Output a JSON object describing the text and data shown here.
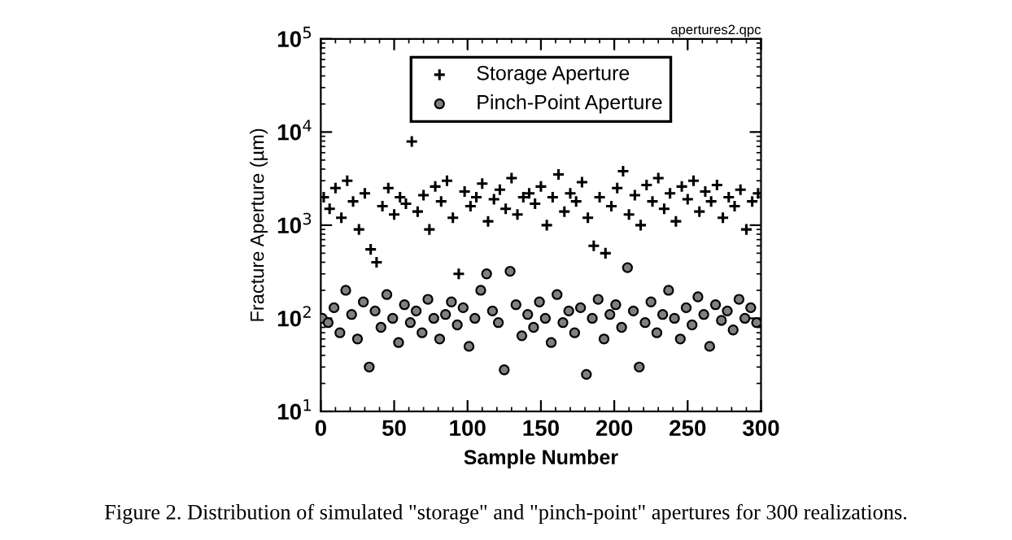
{
  "chart_data": {
    "type": "scatter",
    "xlabel": "Sample Number",
    "ylabel": "Fracture Aperture (µm)",
    "annotations": [
      "apertures2.qpc",
      "Figure 2. Distribution of simulated \"storage\" and \"pinch-point\" apertures for 300 realizations."
    ],
    "log": "y",
    "xlim": [
      0,
      300
    ],
    "xticks": [
      0,
      50,
      100,
      150,
      200,
      250,
      300
    ],
    "ylim": [
      10,
      100000
    ],
    "yticks": [
      {
        "value": 10,
        "label": "10$^{1}$"
      },
      {
        "value": 100,
        "label": "10$^{2}$"
      },
      {
        "value": 1000,
        "label": "10$^{3}$"
      },
      {
        "value": 10000,
        "label": "10$^{4}$"
      },
      {
        "value": 100000,
        "label": "10$^{5}$"
      }
    ],
    "grid": false,
    "legend": "top",
    "series": [
      {
        "name": "Storage Aperture",
        "color": "#000000",
        "marker": "cross",
        "x": [
          2,
          6,
          10,
          14,
          18,
          22,
          26,
          30,
          34,
          38,
          42,
          46,
          50,
          54,
          58,
          62,
          66,
          70,
          74,
          78,
          82,
          86,
          90,
          94,
          98,
          102,
          106,
          110,
          114,
          118,
          122,
          126,
          130,
          134,
          138,
          142,
          146,
          150,
          154,
          158,
          162,
          166,
          170,
          174,
          178,
          182,
          186,
          190,
          194,
          198,
          202,
          206,
          210,
          214,
          218,
          222,
          226,
          230,
          234,
          238,
          242,
          246,
          250,
          254,
          258,
          262,
          266,
          270,
          274,
          278,
          282,
          286,
          290,
          294,
          298
        ],
        "values": [
          2000,
          1500,
          2500,
          1200,
          3000,
          1800,
          900,
          2200,
          550,
          400,
          1600,
          2500,
          1300,
          2000,
          1700,
          7900,
          1400,
          2100,
          900,
          2600,
          1800,
          3000,
          1200,
          300,
          2300,
          1600,
          2000,
          2800,
          1100,
          1900,
          2400,
          1500,
          3200,
          1300,
          2000,
          2200,
          1700,
          2600,
          1000,
          2000,
          3500,
          1400,
          2200,
          1800,
          2900,
          1200,
          600,
          2000,
          500,
          1600,
          2500,
          3800,
          1300,
          2100,
          1000,
          2700,
          1800,
          3200,
          1500,
          2200,
          1100,
          2600,
          1900,
          3000,
          1400,
          2300,
          1800,
          2700,
          1200,
          2000,
          1600,
          2400,
          900,
          1800,
          2200
        ]
      },
      {
        "name": "Pinch-Point Aperture",
        "color": "#808080",
        "marker": "circle",
        "x": [
          1,
          5,
          9,
          13,
          17,
          21,
          25,
          29,
          33,
          37,
          41,
          45,
          49,
          53,
          57,
          61,
          65,
          69,
          73,
          77,
          81,
          85,
          89,
          93,
          97,
          101,
          105,
          109,
          113,
          117,
          121,
          125,
          129,
          133,
          137,
          141,
          145,
          149,
          153,
          157,
          161,
          165,
          169,
          173,
          177,
          181,
          185,
          189,
          193,
          197,
          201,
          205,
          209,
          213,
          217,
          221,
          225,
          229,
          233,
          237,
          241,
          245,
          249,
          253,
          257,
          261,
          265,
          269,
          273,
          277,
          281,
          285,
          289,
          293,
          297
        ],
        "values": [
          100,
          90,
          130,
          70,
          200,
          110,
          60,
          150,
          30,
          120,
          80,
          180,
          100,
          55,
          140,
          90,
          120,
          70,
          160,
          100,
          60,
          110,
          150,
          85,
          130,
          50,
          100,
          200,
          300,
          120,
          90,
          28,
          320,
          140,
          65,
          110,
          80,
          150,
          100,
          55,
          180,
          90,
          120,
          70,
          130,
          25,
          100,
          160,
          60,
          110,
          140,
          80,
          350,
          120,
          30,
          90,
          150,
          70,
          110,
          200,
          100,
          60,
          130,
          85,
          170,
          110,
          50,
          140,
          95,
          120,
          75,
          160,
          100,
          130,
          90
        ]
      }
    ]
  }
}
